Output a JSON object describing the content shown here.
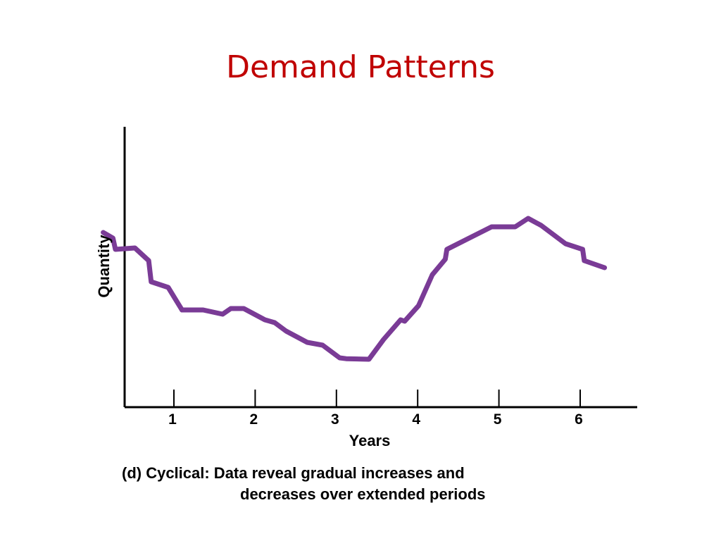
{
  "title": "Demand Patterns",
  "caption": {
    "line1": "(d) Cyclical: Data reveal gradual increases and",
    "line2": "decreases over extended periods"
  },
  "colors": {
    "title": "#c00000",
    "line": "#7a3b96",
    "axis": "#000000"
  },
  "chart_data": {
    "type": "line",
    "title": "",
    "xlabel": "Years",
    "ylabel": "Quantity",
    "xlim": [
      0.6,
      6.6
    ],
    "ylim": [
      0,
      10
    ],
    "xticks": [
      1,
      2,
      3,
      4,
      5,
      6
    ],
    "x": [
      0.13,
      0.25,
      0.28,
      0.52,
      0.69,
      0.72,
      0.93,
      1.1,
      1.36,
      1.6,
      1.7,
      1.86,
      2.12,
      2.24,
      2.38,
      2.64,
      2.83,
      3.04,
      3.12,
      3.4,
      3.58,
      3.79,
      3.84,
      4.01,
      4.18,
      4.34,
      4.36,
      4.6,
      4.91,
      5.2,
      5.36,
      5.52,
      5.82,
      6.03,
      6.05,
      6.3
    ],
    "series": [
      {
        "name": "",
        "values": [
          6.2,
          6.0,
          5.6,
          5.65,
          5.2,
          4.45,
          4.25,
          3.45,
          3.45,
          3.3,
          3.5,
          3.5,
          3.1,
          3.0,
          2.7,
          2.3,
          2.2,
          1.75,
          1.72,
          1.7,
          2.4,
          3.1,
          3.05,
          3.6,
          4.7,
          5.25,
          5.6,
          5.95,
          6.4,
          6.4,
          6.7,
          6.45,
          5.8,
          5.6,
          5.2,
          4.95
        ]
      }
    ],
    "grid": false,
    "legend": "none"
  }
}
